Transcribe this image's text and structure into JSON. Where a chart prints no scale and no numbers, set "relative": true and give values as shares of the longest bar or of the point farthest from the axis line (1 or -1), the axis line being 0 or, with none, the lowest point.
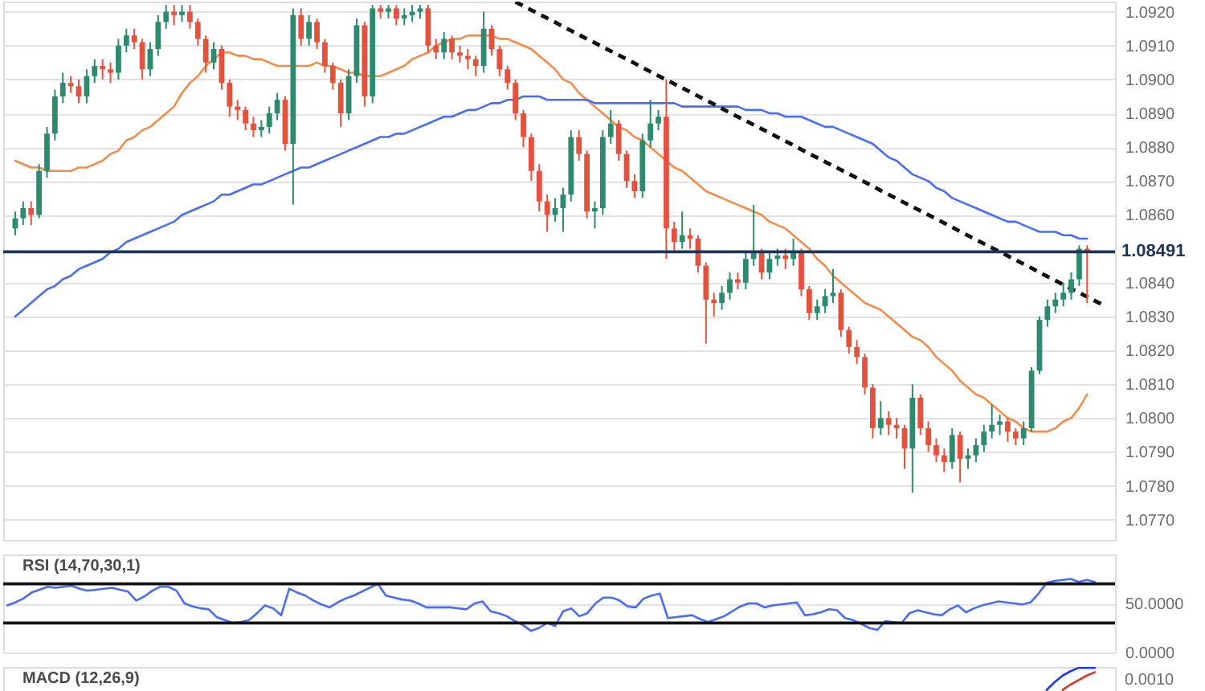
{
  "chart_data": [
    {
      "type": "candlestick",
      "categories": [
        null,
        null,
        null,
        null,
        null,
        null,
        null,
        null,
        null,
        null,
        null,
        null,
        null,
        null,
        null,
        null,
        null,
        null,
        null,
        null,
        null,
        null,
        null,
        null,
        null,
        null,
        null,
        null,
        null,
        null,
        null,
        null,
        null,
        null,
        null,
        null,
        null,
        null,
        null,
        null,
        null,
        null,
        null,
        null,
        null,
        null,
        null,
        null,
        null,
        null,
        null,
        null,
        null,
        null,
        null,
        null,
        null,
        null,
        null,
        null,
        null,
        null,
        null,
        null,
        null,
        null,
        null,
        null,
        null,
        null,
        null,
        null,
        null,
        null,
        null,
        null,
        null,
        null,
        null,
        null,
        null,
        null,
        null,
        null,
        null,
        null,
        null,
        null,
        null,
        null,
        null,
        null,
        null,
        null,
        null,
        null,
        null,
        null,
        null,
        null,
        null,
        null,
        null,
        null,
        null,
        null,
        null,
        null,
        null,
        null,
        null,
        null,
        null,
        null,
        null,
        null,
        null,
        null,
        null,
        null,
        null,
        null,
        null,
        null,
        null,
        null,
        null,
        null,
        null,
        null,
        null,
        null,
        null,
        null,
        null,
        null,
        null,
        null
      ],
      "ohlc": [
        [
          1.0856,
          1.0861,
          1.0854,
          1.0859
        ],
        [
          1.0859,
          1.0864,
          1.0857,
          1.0862
        ],
        [
          1.0862,
          1.0864,
          1.0857,
          1.086
        ],
        [
          1.086,
          1.0875,
          1.0859,
          1.0873
        ],
        [
          1.0873,
          1.0886,
          1.0871,
          1.0884
        ],
        [
          1.0884,
          1.0897,
          1.0882,
          1.0895
        ],
        [
          1.0895,
          1.0902,
          1.0893,
          1.0899
        ],
        [
          1.0899,
          1.0901,
          1.0896,
          1.0898
        ],
        [
          1.0898,
          1.09,
          1.0893,
          1.0895
        ],
        [
          1.0895,
          1.0903,
          1.0893,
          1.0901
        ],
        [
          1.0901,
          1.0906,
          1.0899,
          1.0904
        ],
        [
          1.0904,
          1.0906,
          1.09,
          1.0903
        ],
        [
          1.0903,
          1.0905,
          1.0899,
          1.0902
        ],
        [
          1.0902,
          1.0912,
          1.09,
          1.091
        ],
        [
          1.091,
          1.0915,
          1.0908,
          1.0913
        ],
        [
          1.0913,
          1.0915,
          1.0909,
          1.0911
        ],
        [
          1.0911,
          1.0912,
          1.09,
          1.0903
        ],
        [
          1.0903,
          1.0911,
          1.0901,
          1.0909
        ],
        [
          1.0909,
          1.0919,
          1.0907,
          1.0917
        ],
        [
          1.0917,
          1.0922,
          1.0915,
          1.092
        ],
        [
          1.092,
          1.0922,
          1.0916,
          1.0919
        ],
        [
          1.0919,
          1.0922,
          1.0917,
          1.092
        ],
        [
          1.092,
          1.0922,
          1.0915,
          1.0917
        ],
        [
          1.0917,
          1.0918,
          1.091,
          1.0912
        ],
        [
          1.0912,
          1.0913,
          1.0902,
          1.0905
        ],
        [
          1.0905,
          1.0911,
          1.0903,
          1.0909
        ],
        [
          1.0909,
          1.091,
          1.0897,
          1.0899
        ],
        [
          1.0899,
          1.09,
          1.0889,
          1.0892
        ],
        [
          1.0892,
          1.0894,
          1.0888,
          1.0891
        ],
        [
          1.0891,
          1.0892,
          1.0885,
          1.0887
        ],
        [
          1.0887,
          1.0889,
          1.0883,
          1.0885
        ],
        [
          1.0885,
          1.0888,
          1.0883,
          1.0886
        ],
        [
          1.0886,
          1.0892,
          1.0884,
          1.089
        ],
        [
          1.089,
          1.0896,
          1.0888,
          1.0894
        ],
        [
          1.0894,
          1.0895,
          1.0879,
          1.0881
        ],
        [
          1.0881,
          1.0921,
          1.0863,
          1.0919
        ],
        [
          1.0919,
          1.0921,
          1.091,
          1.0912
        ],
        [
          1.0912,
          1.0919,
          1.091,
          1.0917
        ],
        [
          1.0917,
          1.0918,
          1.0909,
          1.0911
        ],
        [
          1.0911,
          1.0912,
          1.0902,
          1.0904
        ],
        [
          1.0904,
          1.0905,
          1.0897,
          1.0899
        ],
        [
          1.0899,
          1.09,
          1.0886,
          1.089
        ],
        [
          1.089,
          1.0903,
          1.0888,
          1.0901
        ],
        [
          1.0901,
          1.0918,
          1.0899,
          1.0916
        ],
        [
          1.0916,
          1.0917,
          1.0892,
          1.0895
        ],
        [
          1.0895,
          1.0922,
          1.0893,
          1.0921
        ],
        [
          1.0921,
          1.0922,
          1.0918,
          1.092
        ],
        [
          1.092,
          1.0922,
          1.0918,
          1.0921
        ],
        [
          1.0921,
          1.0922,
          1.0916,
          1.0918
        ],
        [
          1.0918,
          1.0921,
          1.0916,
          1.0919
        ],
        [
          1.0919,
          1.0922,
          1.0917,
          1.092
        ],
        [
          1.092,
          1.0922,
          1.0918,
          1.0921
        ],
        [
          1.0921,
          1.0922,
          1.0908,
          1.091
        ],
        [
          1.091,
          1.0912,
          1.0906,
          1.0908
        ],
        [
          1.0908,
          1.0914,
          1.0906,
          1.0912
        ],
        [
          1.0912,
          1.0913,
          1.0906,
          1.0908
        ],
        [
          1.0908,
          1.091,
          1.0905,
          1.0907
        ],
        [
          1.0907,
          1.0909,
          1.0903,
          1.0906
        ],
        [
          1.0906,
          1.0907,
          1.0901,
          1.0904
        ],
        [
          1.0904,
          1.092,
          1.0902,
          1.0915
        ],
        [
          1.0915,
          1.0916,
          1.0907,
          1.0909
        ],
        [
          1.0909,
          1.091,
          1.0901,
          1.0903
        ],
        [
          1.0903,
          1.0904,
          1.0897,
          1.0899
        ],
        [
          1.0899,
          1.09,
          1.0888,
          1.089
        ],
        [
          1.089,
          1.0891,
          1.088,
          1.0883
        ],
        [
          1.0883,
          1.0884,
          1.087,
          1.0873
        ],
        [
          1.0873,
          1.0875,
          1.0861,
          1.0864
        ],
        [
          1.0864,
          1.0866,
          1.0855,
          1.086
        ],
        [
          1.086,
          1.0865,
          1.0858,
          1.0862
        ],
        [
          1.0862,
          1.0868,
          1.0855,
          1.0866
        ],
        [
          1.0866,
          1.0885,
          1.0864,
          1.0883
        ],
        [
          1.0883,
          1.0885,
          1.0876,
          1.0878
        ],
        [
          1.0878,
          1.0879,
          1.0859,
          1.0861
        ],
        [
          1.0861,
          1.0864,
          1.0856,
          1.0862
        ],
        [
          1.0862,
          1.0885,
          1.086,
          1.0883
        ],
        [
          1.0883,
          1.0891,
          1.0881,
          1.0887
        ],
        [
          1.0887,
          1.0888,
          1.0876,
          1.0878
        ],
        [
          1.0878,
          1.0879,
          1.0868,
          1.087
        ],
        [
          1.087,
          1.0872,
          1.0865,
          1.0867
        ],
        [
          1.0867,
          1.0884,
          1.0865,
          1.0882
        ],
        [
          1.0882,
          1.0894,
          1.088,
          1.0887
        ],
        [
          1.0887,
          1.0891,
          1.0885,
          1.0889
        ],
        [
          1.0889,
          1.09,
          1.0847,
          1.0856
        ],
        [
          1.0856,
          1.0858,
          1.0849,
          1.0852
        ],
        [
          1.0852,
          1.0861,
          1.085,
          1.0854
        ],
        [
          1.0854,
          1.0856,
          1.085,
          1.0853
        ],
        [
          1.0853,
          1.0854,
          1.0843,
          1.0845
        ],
        [
          1.0845,
          1.0846,
          1.0822,
          1.0835
        ],
        [
          1.0835,
          1.0837,
          1.083,
          1.0834
        ],
        [
          1.0834,
          1.0839,
          1.0832,
          1.0837
        ],
        [
          1.0837,
          1.0843,
          1.0835,
          1.0841
        ],
        [
          1.0841,
          1.0843,
          1.0838,
          1.084
        ],
        [
          1.084,
          1.0849,
          1.0838,
          1.0847
        ],
        [
          1.0847,
          1.0863,
          1.0845,
          1.0849
        ],
        [
          1.0849,
          1.085,
          1.0841,
          1.0843
        ],
        [
          1.0843,
          1.0849,
          1.0841,
          1.0847
        ],
        [
          1.0847,
          1.085,
          1.0845,
          1.0848
        ],
        [
          1.0848,
          1.085,
          1.0844,
          1.0847
        ],
        [
          1.0847,
          1.0853,
          1.0845,
          1.0849
        ],
        [
          1.0849,
          1.085,
          1.0836,
          1.0838
        ],
        [
          1.0838,
          1.0839,
          1.0829,
          1.0831
        ],
        [
          1.0831,
          1.0835,
          1.0829,
          1.0833
        ],
        [
          1.0833,
          1.0838,
          1.0831,
          1.0836
        ],
        [
          1.0836,
          1.0844,
          1.0834,
          1.0837
        ],
        [
          1.0837,
          1.0838,
          1.0824,
          1.0826
        ],
        [
          1.0826,
          1.0827,
          1.0819,
          1.0821
        ],
        [
          1.0821,
          1.0823,
          1.0816,
          1.0818
        ],
        [
          1.0818,
          1.0819,
          1.0807,
          1.0809
        ],
        [
          1.0809,
          1.081,
          1.0794,
          1.0797
        ],
        [
          1.0797,
          1.0805,
          1.0795,
          1.08
        ],
        [
          1.08,
          1.0802,
          1.0795,
          1.0798
        ],
        [
          1.0798,
          1.08,
          1.0794,
          1.0797
        ],
        [
          1.0797,
          1.0798,
          1.0785,
          1.0791
        ],
        [
          1.0791,
          1.081,
          1.0778,
          1.0806
        ],
        [
          1.0806,
          1.0807,
          1.0795,
          1.0797
        ],
        [
          1.0797,
          1.0799,
          1.079,
          1.0792
        ],
        [
          1.0792,
          1.0794,
          1.0787,
          1.0789
        ],
        [
          1.0789,
          1.0791,
          1.0784,
          1.0787
        ],
        [
          1.0787,
          1.0797,
          1.0785,
          1.0795
        ],
        [
          1.0795,
          1.0796,
          1.0781,
          1.0788
        ],
        [
          1.0788,
          1.0791,
          1.0785,
          1.0789
        ],
        [
          1.0789,
          1.0794,
          1.0787,
          1.0792
        ],
        [
          1.0792,
          1.0798,
          1.079,
          1.0796
        ],
        [
          1.0796,
          1.0804,
          1.0794,
          1.0798
        ],
        [
          1.0798,
          1.0801,
          1.0795,
          1.0799
        ],
        [
          1.0799,
          1.08,
          1.0793,
          1.0796
        ],
        [
          1.0796,
          1.0797,
          1.0792,
          1.0794
        ],
        [
          1.0794,
          1.0799,
          1.0792,
          1.0797
        ],
        [
          1.0797,
          1.0815,
          1.0796,
          1.0814
        ],
        [
          1.0814,
          1.083,
          1.0813,
          1.0829
        ],
        [
          1.0829,
          1.0835,
          1.0827,
          1.0833
        ],
        [
          1.0833,
          1.0837,
          1.0831,
          1.0835
        ],
        [
          1.0835,
          1.084,
          1.0833,
          1.0837
        ],
        [
          1.0837,
          1.0843,
          1.0835,
          1.0841
        ],
        [
          1.0841,
          1.0851,
          1.0839,
          1.085
        ],
        [
          1.085,
          1.0851,
          1.0834,
          1.0849
        ],
        null,
        null
      ],
      "colors": [
        "#2d8a6e",
        "#2d8a6e",
        "#e2533f",
        "#2d8a6e",
        "#2d8a6e",
        "#2d8a6e",
        "#2d8a6e",
        "#e2533f",
        "#e2533f",
        "#2d8a6e",
        "#2d8a6e",
        "#e2533f",
        "#e2533f",
        "#2d8a6e",
        "#2d8a6e",
        "#e2533f",
        "#e2533f",
        "#2d8a6e",
        "#2d8a6e",
        "#2d8a6e",
        "#e2533f",
        "#2d8a6e",
        "#e2533f",
        "#e2533f",
        "#e2533f",
        "#2d8a6e",
        "#e2533f",
        "#e2533f",
        "#e2533f",
        "#e2533f",
        "#e2533f",
        "#2d8a6e",
        "#2d8a6e",
        "#2d8a6e",
        "#e2533f",
        "#2d8a6e",
        "#e2533f",
        "#2d8a6e",
        "#e2533f",
        "#e2533f",
        "#e2533f",
        "#e2533f",
        "#2d8a6e",
        "#2d8a6e",
        "#e2533f",
        "#2d8a6e",
        "#e2533f",
        "#2d8a6e",
        "#e2533f",
        "#2d8a6e",
        "#2d8a6e",
        "#2d8a6e",
        "#e2533f",
        "#e2533f",
        "#2d8a6e",
        "#e2533f",
        "#e2533f",
        "#e2533f",
        "#e2533f",
        "#2d8a6e",
        "#e2533f",
        "#e2533f",
        "#e2533f",
        "#e2533f",
        "#e2533f",
        "#e2533f",
        "#e2533f",
        "#e2533f",
        "#2d8a6e",
        "#2d8a6e",
        "#2d8a6e",
        "#e2533f",
        "#e2533f",
        "#2d8a6e",
        "#2d8a6e",
        "#2d8a6e",
        "#e2533f",
        "#e2533f",
        "#e2533f",
        "#2d8a6e",
        "#2d8a6e",
        "#2d8a6e",
        "#e2533f",
        "#e2533f",
        "#2d8a6e",
        "#e2533f",
        "#e2533f",
        "#e2533f",
        "#e2533f",
        "#2d8a6e",
        "#2d8a6e",
        "#e2533f",
        "#2d8a6e",
        "#2d8a6e",
        "#e2533f",
        "#2d8a6e",
        "#2d8a6e",
        "#e2533f",
        "#2d8a6e",
        "#e2533f",
        "#e2533f",
        "#2d8a6e",
        "#2d8a6e",
        "#2d8a6e",
        "#e2533f",
        "#e2533f",
        "#e2533f",
        "#e2533f",
        "#e2533f",
        "#2d8a6e",
        "#e2533f",
        "#e2533f",
        "#e2533f",
        "#2d8a6e",
        "#e2533f",
        "#e2533f",
        "#e2533f",
        "#e2533f",
        "#2d8a6e",
        "#e2533f",
        "#2d8a6e",
        "#2d8a6e",
        "#2d8a6e",
        "#2d8a6e",
        "#2d8a6e",
        "#e2533f",
        "#e2533f",
        "#2d8a6e",
        "#2d8a6e",
        "#2d8a6e",
        "#2d8a6e",
        "#2d8a6e",
        "#2d8a6e",
        "#2d8a6e",
        "#2d8a6e",
        "#e2533f",
        null,
        null
      ],
      "series": [
        {
          "type": "line",
          "color": "#f28c4b",
          "values": [
            1.0876,
            1.0875,
            1.0874,
            1.0874,
            1.0873,
            1.0873,
            1.0873,
            1.0873,
            1.0874,
            1.0874,
            1.0875,
            1.0876,
            1.0878,
            1.0879,
            1.0882,
            1.0883,
            1.0885,
            1.0886,
            1.0888,
            1.089,
            1.0892,
            1.0896,
            1.0899,
            1.0901,
            1.0904,
            1.0906,
            1.0908,
            1.0908,
            1.0907,
            1.0907,
            1.0906,
            1.0906,
            1.0905,
            1.0904,
            1.0904,
            1.0904,
            1.0904,
            1.0904,
            1.0905,
            1.0904,
            1.0904,
            1.0903,
            1.0902,
            1.0902,
            1.0901,
            1.0901,
            1.0901,
            1.0902,
            1.0903,
            1.0904,
            1.0906,
            1.0907,
            1.0908,
            1.091,
            1.0911,
            1.0912,
            1.0912,
            1.0913,
            1.0913,
            1.0913,
            1.0913,
            1.0912,
            1.0912,
            1.0911,
            1.091,
            1.0909,
            1.0907,
            1.0905,
            1.0903,
            1.09,
            1.0899,
            1.0896,
            1.0894,
            1.0892,
            1.089,
            1.0888,
            1.0886,
            1.0885,
            1.0883,
            1.0882,
            1.088,
            1.0878,
            1.0876,
            1.0874,
            1.0873,
            1.0871,
            1.0869,
            1.0867,
            1.0866,
            1.0865,
            1.0864,
            1.0863,
            1.0862,
            1.0861,
            1.086,
            1.0858,
            1.0857,
            1.0856,
            1.0854,
            1.0852,
            1.085,
            1.0847,
            1.0845,
            1.0842,
            1.084,
            1.0838,
            1.0836,
            1.0834,
            1.0833,
            1.0832,
            1.083,
            1.0828,
            1.0826,
            1.0824,
            1.0823,
            1.0821,
            1.0818,
            1.0816,
            1.0814,
            1.0811,
            1.0809,
            1.0807,
            1.0806,
            1.0804,
            1.0802,
            1.08,
            1.0799,
            1.0797,
            1.0796,
            1.0796,
            1.0796,
            1.0797,
            1.0799,
            1.08,
            1.0803,
            1.0807,
            null,
            null
          ]
        },
        {
          "type": "line",
          "color": "#4a6cf7",
          "values": [
            1.083,
            1.0832,
            1.0834,
            1.0836,
            1.0838,
            1.0839,
            1.0841,
            1.0842,
            1.0844,
            1.0845,
            1.0846,
            1.0847,
            1.0849,
            1.085,
            1.0852,
            1.0853,
            1.0854,
            1.0855,
            1.0856,
            1.0857,
            1.0858,
            1.086,
            1.0861,
            1.0862,
            1.0863,
            1.0864,
            1.0866,
            1.0866,
            1.0867,
            1.0868,
            1.0869,
            1.0869,
            1.087,
            1.0871,
            1.0872,
            1.0873,
            1.0874,
            1.0874,
            1.0875,
            1.0876,
            1.0877,
            1.0878,
            1.0879,
            1.088,
            1.0881,
            1.0882,
            1.0883,
            1.0883,
            1.0884,
            1.0884,
            1.0885,
            1.0886,
            1.0887,
            1.0888,
            1.0889,
            1.0889,
            1.089,
            1.0891,
            1.0891,
            1.0892,
            1.0893,
            1.0893,
            1.0894,
            1.0894,
            1.0895,
            1.0895,
            1.0895,
            1.0894,
            1.0894,
            1.0894,
            1.0894,
            1.0894,
            1.0894,
            1.0893,
            1.0893,
            1.0893,
            1.0893,
            1.0893,
            1.0893,
            1.0893,
            1.0893,
            1.0893,
            1.0893,
            1.0893,
            1.0892,
            1.0892,
            1.0892,
            1.0892,
            1.0892,
            1.0892,
            1.0892,
            1.0892,
            1.0891,
            1.0891,
            1.0891,
            1.089,
            1.089,
            1.0889,
            1.0889,
            1.0889,
            1.0888,
            1.0887,
            1.0886,
            1.0886,
            1.0885,
            1.0884,
            1.0883,
            1.0882,
            1.0881,
            1.0879,
            1.0877,
            1.0876,
            1.0874,
            1.0872,
            1.0871,
            1.087,
            1.0868,
            1.0867,
            1.0865,
            1.0864,
            1.0863,
            1.0862,
            1.0861,
            1.086,
            1.0859,
            1.0858,
            1.0858,
            1.0857,
            1.0856,
            1.0855,
            1.0855,
            1.0855,
            1.0854,
            1.0854,
            1.0853,
            1.0853,
            null,
            null
          ]
        },
        {
          "type": "line",
          "color": "#111111",
          "line_style": "dashed",
          "values": [
            null,
            null,
            null,
            null,
            null,
            null,
            null,
            null,
            null,
            null,
            null,
            null,
            null,
            null,
            null,
            null,
            null,
            null,
            null,
            null,
            null,
            null,
            null,
            null,
            null,
            null,
            null,
            null,
            null,
            null,
            null,
            null,
            null,
            null,
            null,
            null,
            null,
            null,
            null,
            null,
            null,
            null,
            null,
            null,
            null,
            null,
            null,
            null,
            null,
            null,
            null,
            null,
            null,
            null,
            null,
            null,
            null,
            null,
            null,
            null,
            null,
            null,
            null,
            1.09229,
            1.09217,
            1.09205,
            1.09193,
            1.09181,
            1.09169,
            1.09156,
            1.09144,
            1.09132,
            1.0912,
            1.09108,
            1.09096,
            1.09084,
            1.09072,
            1.0906,
            1.09048,
            1.09035,
            1.09023,
            1.09011,
            1.08999,
            1.08987,
            1.08975,
            1.08963,
            1.08951,
            1.08939,
            1.08927,
            1.08914,
            1.08902,
            1.0889,
            1.08878,
            1.08866,
            1.08854,
            1.08842,
            1.0883,
            1.08818,
            1.08806,
            1.08793,
            1.08781,
            1.08769,
            1.08757,
            1.08745,
            1.08733,
            1.08721,
            1.08709,
            1.08697,
            1.08685,
            1.08672,
            1.0866,
            1.08648,
            1.08636,
            1.08624,
            1.08612,
            1.086,
            1.08588,
            1.08576,
            1.08564,
            1.08551,
            1.08539,
            1.08527,
            1.08515,
            1.08503,
            1.08491,
            1.08479,
            1.08467,
            1.08455,
            1.08443,
            1.0843,
            1.08418,
            1.08406,
            1.08394,
            1.08382,
            1.0837,
            1.08358,
            1.08346,
            1.08334
          ]
        }
      ],
      "ylim": [
        1.0764,
        1.0923
      ],
      "yticks": [
        {
          "value": 1.077,
          "label": "1.0770"
        },
        {
          "value": 1.078,
          "label": "1.0780"
        },
        {
          "value": 1.079,
          "label": "1.0790"
        },
        {
          "value": 1.08,
          "label": "1.0800"
        },
        {
          "value": 1.081,
          "label": "1.0810"
        },
        {
          "value": 1.082,
          "label": "1.0820"
        },
        {
          "value": 1.083,
          "label": "1.0830"
        },
        {
          "value": 1.084,
          "label": "1.0840"
        },
        {
          "value": 1.086,
          "label": "1.0860"
        },
        {
          "value": 1.087,
          "label": "1.0870"
        },
        {
          "value": 1.088,
          "label": "1.0880"
        },
        {
          "value": 1.089,
          "label": "1.0890"
        },
        {
          "value": 1.09,
          "label": "1.0900"
        },
        {
          "value": 1.091,
          "label": "1.0910"
        },
        {
          "value": 1.092,
          "label": "1.0920"
        }
      ],
      "ref_lines": [
        {
          "axis": "y",
          "value": 1.08491,
          "label": "1.08491",
          "color": "#1f3556"
        }
      ],
      "grid": "y",
      "tick_labels": "y"
    },
    {
      "type": "line",
      "title": "RSI (14,70,30,1)",
      "categories": [
        null,
        null,
        null,
        null,
        null,
        null,
        null,
        null,
        null,
        null,
        null,
        null,
        null,
        null,
        null,
        null,
        null,
        null,
        null,
        null,
        null,
        null,
        null,
        null,
        null,
        null,
        null,
        null,
        null,
        null,
        null,
        null,
        null,
        null,
        null,
        null,
        null,
        null,
        null,
        null,
        null,
        null,
        null,
        null,
        null,
        null,
        null,
        null,
        null,
        null,
        null,
        null,
        null,
        null,
        null,
        null,
        null,
        null,
        null,
        null,
        null,
        null,
        null,
        null,
        null,
        null,
        null,
        null,
        null,
        null,
        null,
        null,
        null,
        null,
        null,
        null,
        null,
        null,
        null,
        null,
        null,
        null,
        null,
        null,
        null,
        null,
        null,
        null,
        null,
        null,
        null,
        null,
        null,
        null,
        null,
        null,
        null,
        null,
        null,
        null,
        null,
        null,
        null,
        null,
        null,
        null,
        null,
        null,
        null,
        null,
        null,
        null,
        null,
        null,
        null,
        null,
        null,
        null,
        null,
        null,
        null,
        null,
        null,
        null,
        null,
        null,
        null,
        null,
        null,
        null,
        null,
        null,
        null,
        null,
        null,
        null,
        null,
        null
      ],
      "series": [
        {
          "color": "#4a6cf7",
          "values": [
            48,
            51,
            55,
            61,
            64,
            67,
            66,
            67,
            68,
            65,
            63,
            64,
            65,
            66,
            64,
            62,
            53,
            57,
            63,
            67,
            67,
            63,
            50,
            47,
            45,
            44,
            36,
            33,
            30,
            31,
            33,
            40,
            48,
            45,
            38,
            65,
            61,
            58,
            53,
            49,
            46,
            51,
            55,
            58,
            62,
            66,
            70,
            58,
            56,
            54,
            53,
            50,
            46,
            46,
            46,
            46,
            45,
            44,
            50,
            52,
            42,
            40,
            37,
            32,
            28,
            22,
            25,
            30,
            27,
            42,
            45,
            37,
            40,
            50,
            56,
            56,
            53,
            47,
            46,
            55,
            58,
            60,
            35,
            36,
            37,
            38,
            34,
            31,
            34,
            37,
            42,
            47,
            50,
            50,
            46,
            48,
            49,
            50,
            51,
            38,
            39,
            41,
            44,
            43,
            35,
            33,
            29,
            25,
            23,
            32,
            31,
            30,
            40,
            43,
            41,
            39,
            38,
            44,
            48,
            41,
            45,
            48,
            50,
            52,
            51,
            50,
            49,
            51,
            60,
            71,
            73,
            74,
            75,
            72,
            74,
            72,
            null,
            null
          ]
        }
      ],
      "ylim": [
        0,
        100
      ],
      "yticks": [
        {
          "value": 0,
          "label": "0.0000"
        },
        {
          "value": 50,
          "label": "50.0000"
        }
      ],
      "ref_lines": [
        {
          "axis": "y",
          "value": 70,
          "color": "#111111"
        },
        {
          "axis": "y",
          "value": 30,
          "color": "#111111"
        }
      ],
      "grid": "y",
      "tick_labels": "y"
    },
    {
      "type": "line",
      "title": "MACD (12,26,9)",
      "relative": true,
      "categories": [
        null,
        null,
        null,
        null,
        null,
        null,
        null,
        null,
        null,
        null,
        null,
        null,
        null,
        null,
        null,
        null,
        null,
        null,
        null,
        null,
        null,
        null,
        null,
        null,
        null,
        null,
        null,
        null,
        null,
        null,
        null,
        null,
        null,
        null,
        null,
        null,
        null,
        null,
        null,
        null,
        null,
        null,
        null,
        null,
        null,
        null,
        null,
        null,
        null,
        null,
        null,
        null,
        null,
        null,
        null,
        null,
        null,
        null,
        null,
        null,
        null,
        null,
        null,
        null,
        null,
        null,
        null,
        null,
        null,
        null,
        null,
        null,
        null,
        null,
        null,
        null,
        null,
        null,
        null,
        null,
        null,
        null,
        null,
        null,
        null,
        null,
        null,
        null,
        null,
        null,
        null,
        null,
        null,
        null,
        null,
        null,
        null,
        null,
        null,
        null,
        null,
        null,
        null,
        null,
        null,
        null,
        null,
        null,
        null,
        null,
        null,
        null,
        null,
        null,
        null,
        null,
        null,
        null,
        null,
        null,
        null,
        null,
        null,
        null,
        null,
        null,
        null,
        null,
        null,
        null,
        null,
        null,
        null,
        null,
        null,
        null,
        null,
        null
      ],
      "series": [
        {
          "color": "#1f3cf5",
          "values": [
            null,
            null,
            null,
            null,
            null,
            null,
            null,
            null,
            null,
            null,
            null,
            null,
            null,
            null,
            null,
            null,
            null,
            null,
            null,
            null,
            null,
            null,
            null,
            null,
            null,
            null,
            null,
            null,
            null,
            null,
            null,
            null,
            null,
            null,
            null,
            null,
            null,
            null,
            null,
            null,
            null,
            null,
            null,
            null,
            null,
            null,
            null,
            null,
            null,
            null,
            null,
            null,
            null,
            null,
            null,
            null,
            null,
            null,
            null,
            null,
            null,
            null,
            null,
            null,
            null,
            null,
            null,
            null,
            null,
            null,
            null,
            null,
            null,
            null,
            null,
            null,
            null,
            null,
            null,
            null,
            null,
            null,
            null,
            null,
            null,
            null,
            null,
            null,
            null,
            null,
            null,
            null,
            null,
            null,
            null,
            null,
            null,
            null,
            null,
            null,
            null,
            null,
            null,
            null,
            null,
            null,
            null,
            null,
            null,
            null,
            null,
            null,
            null,
            null,
            null,
            null,
            null,
            null,
            null,
            null,
            null,
            null,
            null,
            null,
            null,
            null,
            null,
            null,
            null,
            0,
            0.35,
            0.65,
            0.85,
            1,
            1,
            1,
            null,
            null
          ]
        },
        {
          "color": "#d6382c",
          "values": [
            null,
            null,
            null,
            null,
            null,
            null,
            null,
            null,
            null,
            null,
            null,
            null,
            null,
            null,
            null,
            null,
            null,
            null,
            null,
            null,
            null,
            null,
            null,
            null,
            null,
            null,
            null,
            null,
            null,
            null,
            null,
            null,
            null,
            null,
            null,
            null,
            null,
            null,
            null,
            null,
            null,
            null,
            null,
            null,
            null,
            null,
            null,
            null,
            null,
            null,
            null,
            null,
            null,
            null,
            null,
            null,
            null,
            null,
            null,
            null,
            null,
            null,
            null,
            null,
            null,
            null,
            null,
            null,
            null,
            null,
            null,
            null,
            null,
            null,
            null,
            null,
            null,
            null,
            null,
            null,
            null,
            null,
            null,
            null,
            null,
            null,
            null,
            null,
            null,
            null,
            null,
            null,
            null,
            null,
            null,
            null,
            null,
            null,
            null,
            null,
            null,
            null,
            null,
            null,
            null,
            null,
            null,
            null,
            null,
            null,
            null,
            null,
            null,
            null,
            null,
            null,
            null,
            null,
            null,
            null,
            null,
            null,
            null,
            null,
            null,
            null,
            null,
            null,
            null,
            null,
            null,
            0,
            0.25,
            0.45,
            0.65,
            0.8,
            null,
            null
          ]
        }
      ],
      "annotations": [
        "0.0010"
      ],
      "tick_labels": "y"
    }
  ]
}
